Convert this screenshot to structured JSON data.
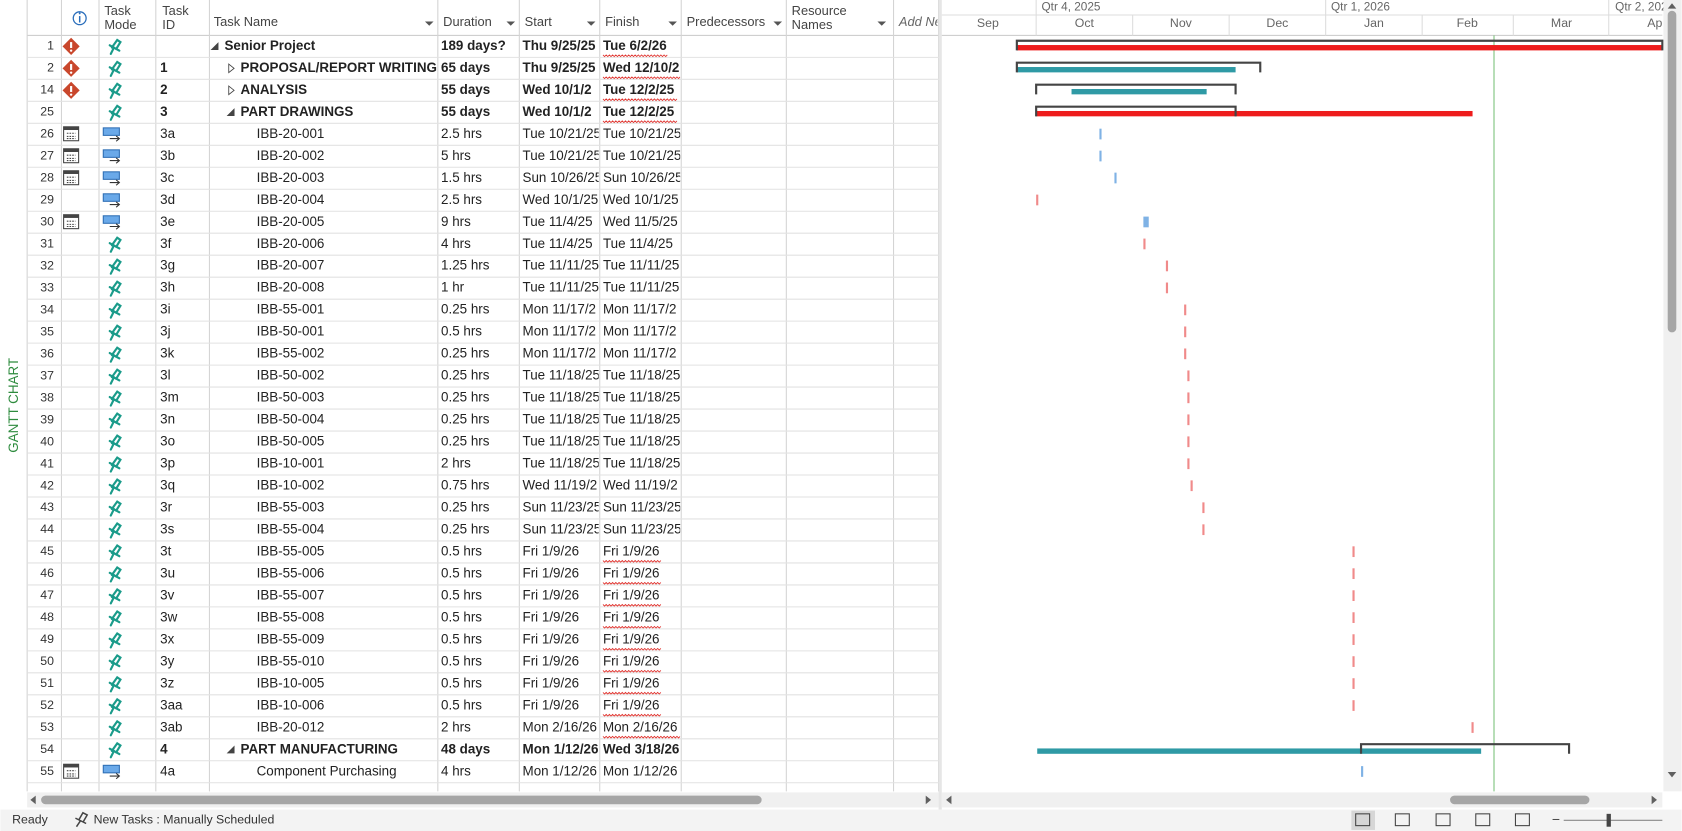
{
  "side_label": "GANTT CHART",
  "columns": {
    "task_mode": [
      "Task",
      "Mode"
    ],
    "task_id": [
      "Task",
      "ID"
    ],
    "task_name": "Task Name",
    "duration": "Duration",
    "start": "Start",
    "finish": "Finish",
    "predecessors": "Predecessors",
    "resource_names": [
      "Resource",
      "Names"
    ],
    "add_new": "Add Ne"
  },
  "timescale": {
    "quarters": [
      "Qtr 4, 2025",
      "Qtr 1, 2026",
      "Qtr 2, 202"
    ],
    "months": [
      "Sep",
      "Oct",
      "Nov",
      "Dec",
      "Jan",
      "Feb",
      "Mar",
      "Ap"
    ]
  },
  "rows": [
    {
      "row": "1",
      "id": "",
      "name": "Senior Project",
      "duration": "189 days?",
      "start": "Thu 9/25/25",
      "finish": "Tue 6/2/26"
    },
    {
      "row": "2",
      "id": "1",
      "name": "PROPOSAL/REPORT WRITING",
      "duration": "65 days",
      "start": "Thu 9/25/25",
      "finish": "Wed 12/10/2"
    },
    {
      "row": "14",
      "id": "2",
      "name": "ANALYSIS",
      "duration": "55 days",
      "start": "Wed 10/1/2",
      "finish": "Tue 12/2/25"
    },
    {
      "row": "25",
      "id": "3",
      "name": "PART DRAWINGS",
      "duration": "55 days",
      "start": "Wed 10/1/2",
      "finish": "Tue 12/2/25"
    },
    {
      "row": "26",
      "id": "3a",
      "name": "IBB-20-001",
      "duration": "2.5 hrs",
      "start": "Tue 10/21/25",
      "finish": "Tue 10/21/25"
    },
    {
      "row": "27",
      "id": "3b",
      "name": "IBB-20-002",
      "duration": "5 hrs",
      "start": "Tue 10/21/25",
      "finish": "Tue 10/21/25"
    },
    {
      "row": "28",
      "id": "3c",
      "name": "IBB-20-003",
      "duration": "1.5 hrs",
      "start": "Sun 10/26/25",
      "finish": "Sun 10/26/25"
    },
    {
      "row": "29",
      "id": "3d",
      "name": "IBB-20-004",
      "duration": "2.5 hrs",
      "start": "Wed 10/1/25",
      "finish": "Wed 10/1/25"
    },
    {
      "row": "30",
      "id": "3e",
      "name": "IBB-20-005",
      "duration": "9 hrs",
      "start": "Tue 11/4/25",
      "finish": "Wed 11/5/25"
    },
    {
      "row": "31",
      "id": "3f",
      "name": "IBB-20-006",
      "duration": "4 hrs",
      "start": "Tue 11/4/25",
      "finish": "Tue 11/4/25"
    },
    {
      "row": "32",
      "id": "3g",
      "name": "IBB-20-007",
      "duration": "1.25 hrs",
      "start": "Tue 11/11/25",
      "finish": "Tue 11/11/25"
    },
    {
      "row": "33",
      "id": "3h",
      "name": "IBB-20-008",
      "duration": "1 hr",
      "start": "Tue 11/11/25",
      "finish": "Tue 11/11/25"
    },
    {
      "row": "34",
      "id": "3i",
      "name": "IBB-55-001",
      "duration": "0.25 hrs",
      "start": "Mon 11/17/2",
      "finish": "Mon 11/17/2"
    },
    {
      "row": "35",
      "id": "3j",
      "name": "IBB-50-001",
      "duration": "0.5 hrs",
      "start": "Mon 11/17/2",
      "finish": "Mon 11/17/2"
    },
    {
      "row": "36",
      "id": "3k",
      "name": "IBB-55-002",
      "duration": "0.25 hrs",
      "start": "Mon 11/17/2",
      "finish": "Mon 11/17/2"
    },
    {
      "row": "37",
      "id": "3l",
      "name": "IBB-50-002",
      "duration": "0.25 hrs",
      "start": "Tue 11/18/25",
      "finish": "Tue 11/18/25"
    },
    {
      "row": "38",
      "id": "3m",
      "name": "IBB-50-003",
      "duration": "0.25 hrs",
      "start": "Tue 11/18/25",
      "finish": "Tue 11/18/25"
    },
    {
      "row": "39",
      "id": "3n",
      "name": "IBB-50-004",
      "duration": "0.25 hrs",
      "start": "Tue 11/18/25",
      "finish": "Tue 11/18/25"
    },
    {
      "row": "40",
      "id": "3o",
      "name": "IBB-50-005",
      "duration": "0.25 hrs",
      "start": "Tue 11/18/25",
      "finish": "Tue 11/18/25"
    },
    {
      "row": "41",
      "id": "3p",
      "name": "IBB-10-001",
      "duration": "2 hrs",
      "start": "Tue 11/18/25",
      "finish": "Tue 11/18/25"
    },
    {
      "row": "42",
      "id": "3q",
      "name": "IBB-10-002",
      "duration": "0.75 hrs",
      "start": "Wed 11/19/2",
      "finish": "Wed 11/19/2"
    },
    {
      "row": "43",
      "id": "3r",
      "name": "IBB-55-003",
      "duration": "0.25 hrs",
      "start": "Sun 11/23/25",
      "finish": "Sun 11/23/25"
    },
    {
      "row": "44",
      "id": "3s",
      "name": "IBB-55-004",
      "duration": "0.25 hrs",
      "start": "Sun 11/23/25",
      "finish": "Sun 11/23/25"
    },
    {
      "row": "45",
      "id": "3t",
      "name": "IBB-55-005",
      "duration": "0.5 hrs",
      "start": "Fri 1/9/26",
      "finish": "Fri 1/9/26"
    },
    {
      "row": "46",
      "id": "3u",
      "name": "IBB-55-006",
      "duration": "0.5 hrs",
      "start": "Fri 1/9/26",
      "finish": "Fri 1/9/26"
    },
    {
      "row": "47",
      "id": "3v",
      "name": "IBB-55-007",
      "duration": "0.5 hrs",
      "start": "Fri 1/9/26",
      "finish": "Fri 1/9/26"
    },
    {
      "row": "48",
      "id": "3w",
      "name": "IBB-55-008",
      "duration": "0.5 hrs",
      "start": "Fri 1/9/26",
      "finish": "Fri 1/9/26"
    },
    {
      "row": "49",
      "id": "3x",
      "name": "IBB-55-009",
      "duration": "0.5 hrs",
      "start": "Fri 1/9/26",
      "finish": "Fri 1/9/26"
    },
    {
      "row": "50",
      "id": "3y",
      "name": "IBB-55-010",
      "duration": "0.5 hrs",
      "start": "Fri 1/9/26",
      "finish": "Fri 1/9/26"
    },
    {
      "row": "51",
      "id": "3z",
      "name": "IBB-10-005",
      "duration": "0.5 hrs",
      "start": "Fri 1/9/26",
      "finish": "Fri 1/9/26"
    },
    {
      "row": "52",
      "id": "3aa",
      "name": "IBB-10-006",
      "duration": "0.5 hrs",
      "start": "Fri 1/9/26",
      "finish": "Fri 1/9/26"
    },
    {
      "row": "53",
      "id": "3ab",
      "name": "IBB-20-012",
      "duration": "2 hrs",
      "start": "Mon 2/16/26",
      "finish": "Mon 2/16/26"
    },
    {
      "row": "54",
      "id": "4",
      "name": "PART MANUFACTURING",
      "duration": "48 days",
      "start": "Mon 1/12/26",
      "finish": "Wed 3/18/26"
    },
    {
      "row": "55",
      "id": "4a",
      "name": "Component Purchasing",
      "duration": "4 hrs",
      "start": "Mon 1/12/26",
      "finish": "Mon 1/12/26"
    }
  ],
  "status": {
    "ready": "Ready",
    "new_tasks": "New Tasks : Manually Scheduled"
  }
}
